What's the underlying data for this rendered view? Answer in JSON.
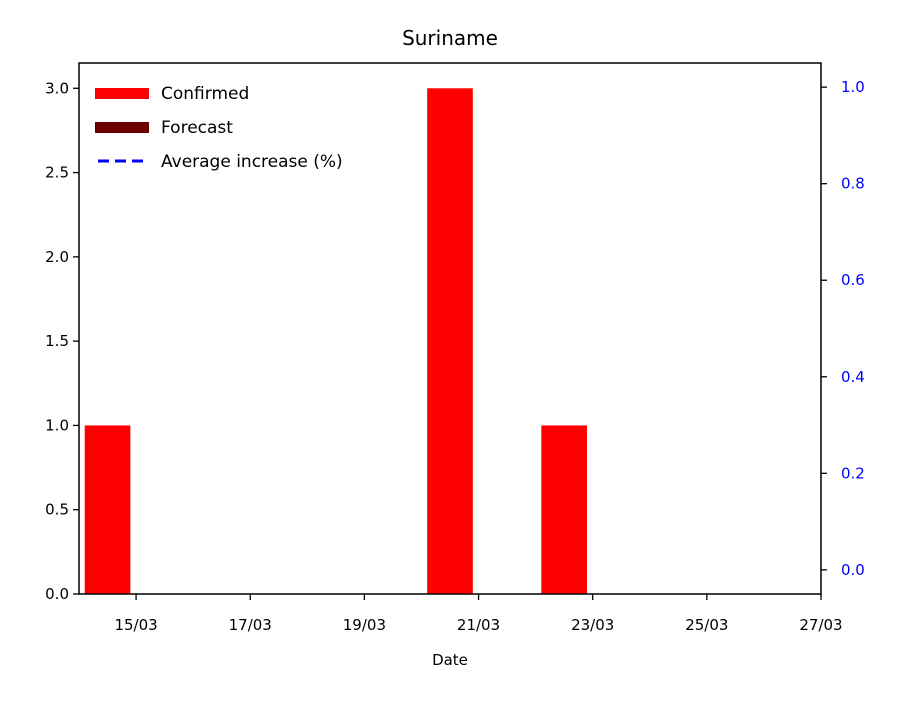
{
  "chart_data": {
    "type": "bar",
    "title": "Suriname",
    "xlabel": "Date",
    "ylabel": "",
    "y2label": "",
    "x_tick_labels": [
      "15/03",
      "17/03",
      "19/03",
      "21/03",
      "23/03",
      "25/03",
      "27/03"
    ],
    "y_tick_labels": [
      "0.0",
      "0.5",
      "1.0",
      "1.5",
      "2.0",
      "2.5",
      "3.0"
    ],
    "y2_tick_labels": [
      "0.0",
      "0.2",
      "0.4",
      "0.6",
      "0.8",
      "1.0"
    ],
    "ylim": [
      0,
      3.15
    ],
    "y2lim": [
      -0.05,
      1.05
    ],
    "xlim": [
      "14/03",
      "27/03"
    ],
    "legend_position": "top-left",
    "grid": false,
    "series": [
      {
        "name": "Confirmed",
        "kind": "bar",
        "color": "#ff0000",
        "points": [
          {
            "date": "14/03",
            "value": 1
          },
          {
            "date": "20/03",
            "value": 3
          },
          {
            "date": "22/03",
            "value": 1
          }
        ]
      },
      {
        "name": "Forecast",
        "kind": "bar",
        "color": "#6b0000",
        "points": []
      },
      {
        "name": "Average increase (%)",
        "kind": "line",
        "axis": "right",
        "color": "#0000ff",
        "style": "dashed",
        "points": []
      }
    ],
    "right_axis_color": "#0000ff"
  }
}
